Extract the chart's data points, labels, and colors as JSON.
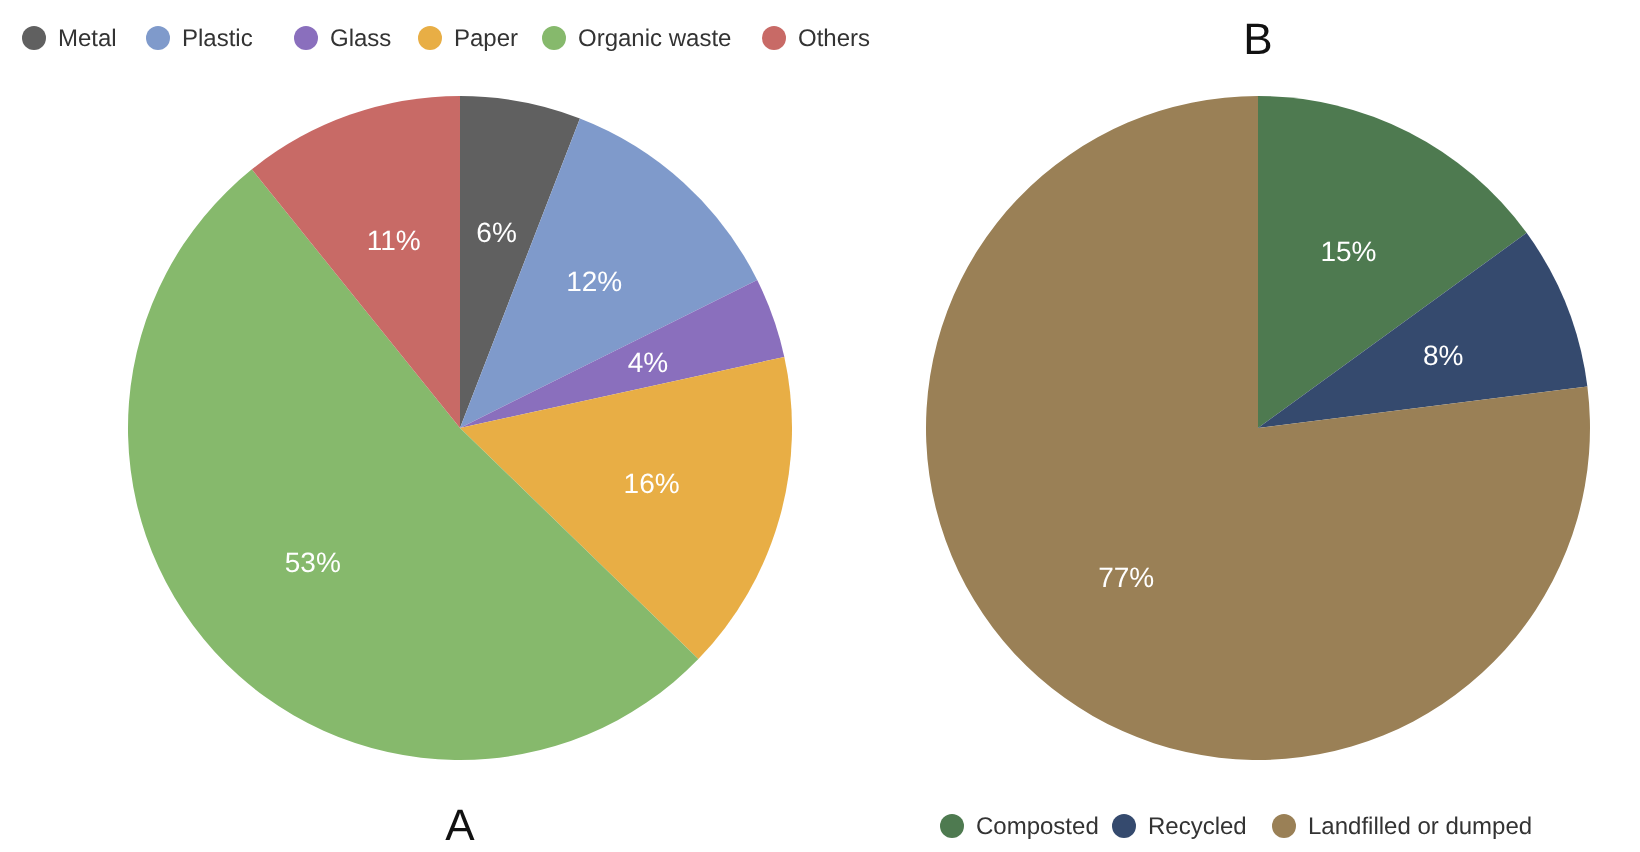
{
  "chart_data": [
    {
      "type": "pie",
      "title": "A",
      "categories": [
        "Metal",
        "Plastic",
        "Glass",
        "Paper",
        "Organic waste",
        "Others"
      ],
      "values": [
        6,
        12,
        4,
        16,
        53,
        11
      ],
      "colors": [
        "#606060",
        "#7f9acb",
        "#8a6fbd",
        "#e8ae45",
        "#86b96c",
        "#c86a66"
      ],
      "value_labels": [
        "6%",
        "12%",
        "4%",
        "16%",
        "53%",
        "11%"
      ],
      "legend": "top"
    },
    {
      "type": "pie",
      "title": "B",
      "categories": [
        "Composted",
        "Recycled",
        "Landfilled or dumped"
      ],
      "values": [
        15,
        8,
        77
      ],
      "colors": [
        "#4e7a50",
        "#354a6e",
        "#9a8056"
      ],
      "value_labels": [
        "15%",
        "8%",
        "77%"
      ],
      "legend": "bottom"
    }
  ]
}
